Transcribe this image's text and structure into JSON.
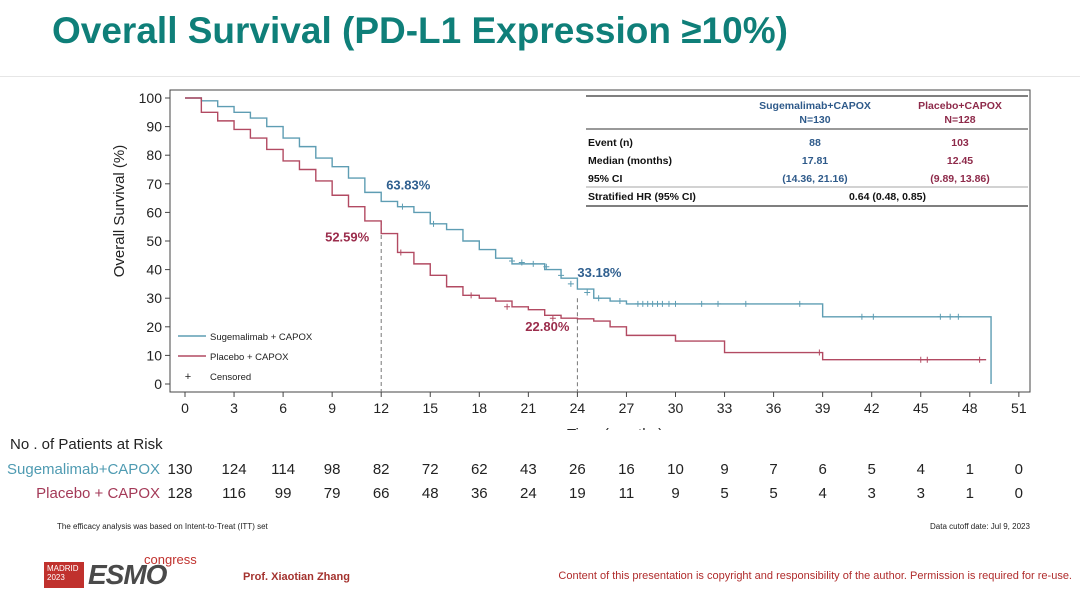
{
  "title": "Overall Survival (PD-L1 Expression ≥10%)",
  "chart_data": {
    "type": "line",
    "subtype": "kaplan-meier",
    "xlabel": "Time (months)",
    "ylabel": "Overall Survival (%)",
    "xlim": [
      0,
      51
    ],
    "ylim": [
      0,
      100
    ],
    "xticks": [
      "0",
      "3",
      "6",
      "9",
      "12",
      "15",
      "18",
      "21",
      "24",
      "27",
      "30",
      "33",
      "36",
      "39",
      "42",
      "45",
      "48",
      "51"
    ],
    "yticks": [
      "0",
      "10",
      "20",
      "30",
      "40",
      "50",
      "60",
      "70",
      "80",
      "90",
      "100"
    ],
    "legend_position": "bottom-left",
    "series": [
      {
        "name": "Sugemalimab + CAPOX",
        "color": "#5e9db3",
        "x": [
          0,
          1,
          2,
          3,
          4,
          5,
          6,
          7,
          8,
          9,
          10,
          11,
          12,
          13,
          14,
          15,
          16,
          17,
          18,
          19,
          20,
          21,
          22,
          23,
          24,
          25,
          26,
          27,
          28,
          30,
          32,
          33,
          34,
          36,
          38,
          39,
          40,
          42,
          44,
          46,
          48,
          49.2,
          49.3
        ],
        "y": [
          100,
          99,
          97,
          95,
          93,
          90,
          86,
          83,
          79,
          76,
          72,
          67,
          63.83,
          62,
          60,
          56,
          54,
          50,
          47,
          44,
          42,
          42,
          40,
          37,
          33.18,
          30,
          29,
          28,
          28,
          28,
          28,
          28,
          28,
          28,
          28,
          23.5,
          23.5,
          23.5,
          23.5,
          23.5,
          23.5,
          23.5,
          0
        ],
        "censor_x": [
          13.3,
          15.2,
          20,
          20.6,
          21.3,
          22.1,
          23,
          23.6,
          24.6,
          25.3,
          26.6,
          27.7,
          28.0,
          28.3,
          28.6,
          28.9,
          29.2,
          29.6,
          30,
          31.6,
          32.6,
          34.3,
          37.6,
          41.4,
          42.1,
          46.2,
          46.8,
          47.3
        ],
        "censor_y": [
          62,
          56,
          43,
          42.5,
          42,
          41,
          38,
          35,
          32,
          30,
          29,
          28,
          28,
          28,
          28,
          28,
          28,
          28,
          28,
          28,
          28,
          28,
          28,
          23.5,
          23.5,
          23.5,
          23.5,
          23.5
        ]
      },
      {
        "name": "Placebo + CAPOX",
        "color": "#b24a62",
        "x": [
          0,
          1,
          2,
          3,
          4,
          5,
          6,
          7,
          8,
          9,
          10,
          11,
          12,
          13,
          14,
          15,
          16,
          17,
          18,
          19,
          20,
          21,
          22,
          23,
          24,
          25,
          26,
          27,
          28,
          29,
          30,
          31,
          32,
          33,
          34,
          36,
          38,
          39,
          40,
          42,
          44,
          46,
          48,
          49
        ],
        "y": [
          100,
          95,
          92,
          89,
          86,
          82,
          78,
          75,
          71,
          66,
          62,
          57,
          52.59,
          46,
          42,
          38,
          34,
          31,
          30,
          29,
          27,
          26,
          24,
          23,
          22.8,
          22,
          20,
          17,
          17,
          17,
          15,
          15,
          15,
          11,
          11,
          11,
          11,
          8.5,
          8.5,
          8.5,
          8.5,
          8.5,
          8.5,
          8.5
        ],
        "censor_x": [
          13.2,
          17.5,
          19.7,
          22.5,
          38.8,
          45,
          45.4,
          48.6
        ],
        "censor_y": [
          46,
          31,
          27,
          23,
          11,
          8.5,
          8.5,
          8.5
        ]
      }
    ],
    "annotations": [
      {
        "text": "63.83%",
        "x": 12,
        "y": 63.83,
        "color": "#2f5f8f"
      },
      {
        "text": "52.59%",
        "x": 12,
        "y": 52.59,
        "color": "#9b2d4c"
      },
      {
        "text": "33.18%",
        "x": 24,
        "y": 33.18,
        "color": "#2f5f8f"
      },
      {
        "text": "22.80%",
        "x": 24,
        "y": 22.8,
        "color": "#9b2d4c"
      }
    ],
    "reference_x": [
      12,
      24
    ]
  },
  "legend": {
    "items": [
      "Sugemalimab + CAPOX",
      "Placebo + CAPOX",
      "Censored"
    ],
    "censor_symbol": "+"
  },
  "summary_table": {
    "col1_header": "Sugemalimab+CAPOX",
    "col1_n": "N=130",
    "col2_header": "Placebo+CAPOX",
    "col2_n": "N=128",
    "rows": [
      {
        "label": "Event (n)",
        "v1": "88",
        "v2": "103"
      },
      {
        "label": "Median (months)",
        "v1": "17.81",
        "v2": "12.45"
      },
      {
        "label": "95% CI",
        "v1": "(14.36, 21.16)",
        "v2": "(9.89, 13.86)"
      }
    ],
    "hr_label": "Stratified HR (95% CI)",
    "hr_value": "0.64 (0.48, 0.85)"
  },
  "risk_table": {
    "header": "No . of Patients at Risk",
    "rows": [
      {
        "label": "Sugemalimab+CAPOX",
        "color": "#4f9bb2",
        "values": [
          "130",
          "124",
          "114",
          "98",
          "82",
          "72",
          "62",
          "43",
          "26",
          "16",
          "10",
          "9",
          "7",
          "6",
          "5",
          "4",
          "1",
          "0"
        ]
      },
      {
        "label": "Placebo + CAPOX",
        "color": "#a43a58",
        "values": [
          "128",
          "116",
          "99",
          "79",
          "66",
          "48",
          "36",
          "24",
          "19",
          "11",
          "9",
          "5",
          "5",
          "4",
          "3",
          "3",
          "1",
          "0"
        ]
      }
    ]
  },
  "notes": {
    "itt": "The efficacy analysis was based on Intent-to-Treat (ITT) set",
    "cutoff": "Data cutoff date: Jul 9, 2023"
  },
  "footer": {
    "logo_box_line1": "MADRID",
    "logo_box_line2": "2023",
    "logo_esmo": "ESMO",
    "logo_congress": "congress",
    "presenter": "Prof. Xiaotian Zhang",
    "copyright": "Content of this presentation is copyright and responsibility of the author. Permission is required for re-use."
  }
}
